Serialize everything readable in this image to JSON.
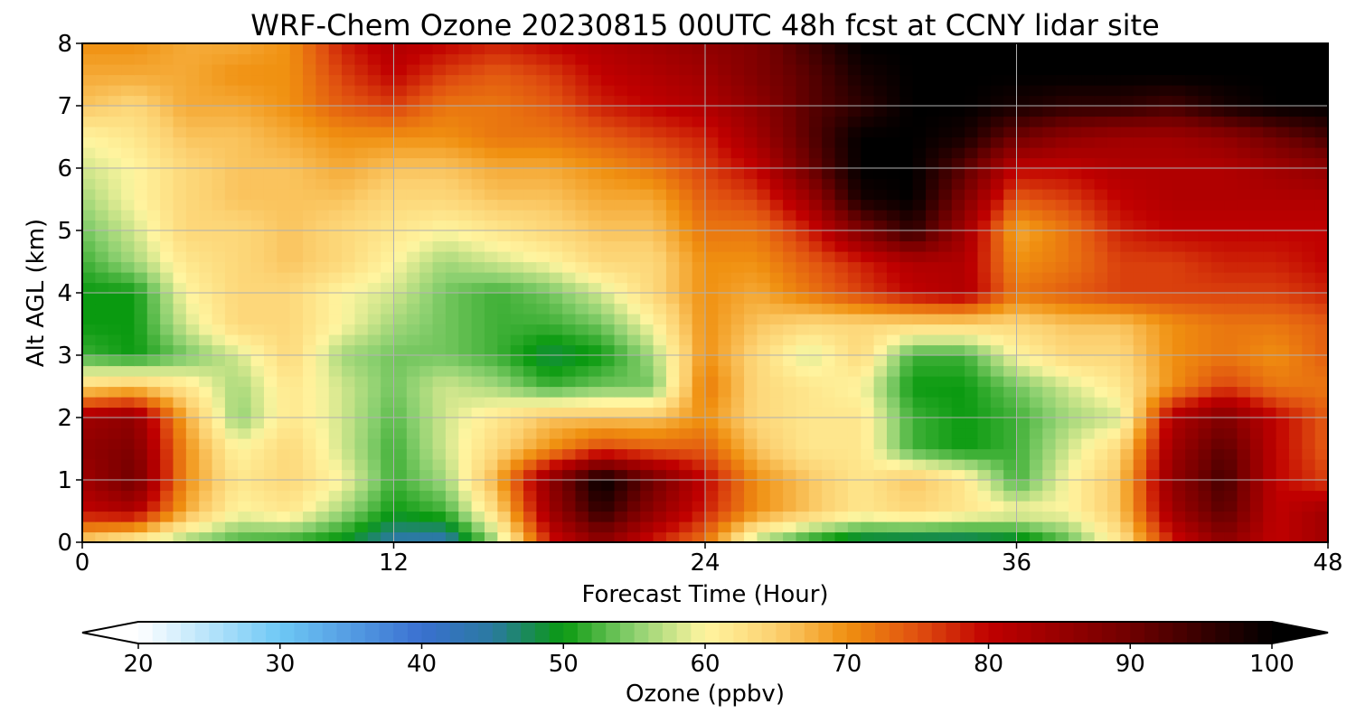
{
  "chart_data": {
    "type": "heatmap",
    "title": "WRF-Chem Ozone  20230815 00UTC 48h fcst at CCNY lidar site",
    "xlabel": "Forecast Time (Hour)",
    "ylabel": "Alt AGL (km)",
    "xlim": [
      0,
      48
    ],
    "ylim": [
      0,
      8
    ],
    "x_ticks": [
      0,
      12,
      24,
      36,
      48
    ],
    "y_ticks": [
      0,
      1,
      2,
      3,
      4,
      5,
      6,
      7,
      8
    ],
    "grid": true,
    "x": [
      0,
      2,
      4,
      6,
      8,
      10,
      12,
      14,
      16,
      18,
      20,
      22,
      24,
      26,
      28,
      30,
      32,
      34,
      36,
      38,
      40,
      42,
      44,
      46,
      48
    ],
    "y": [
      0,
      0.5,
      1,
      1.5,
      2,
      2.5,
      3,
      3.5,
      4,
      4.5,
      5,
      5.5,
      6,
      6.5,
      7,
      7.5,
      8
    ],
    "z": [
      [
        64,
        60,
        55,
        52,
        51,
        49,
        44,
        43,
        56,
        78,
        86,
        78,
        72,
        56,
        50,
        46,
        45,
        45,
        47,
        53,
        62,
        78,
        86,
        80,
        84
      ],
      [
        80,
        82,
        68,
        60,
        62,
        56,
        50,
        52,
        64,
        84,
        96,
        86,
        78,
        70,
        66,
        62,
        64,
        62,
        60,
        60,
        66,
        84,
        92,
        80,
        84
      ],
      [
        84,
        90,
        70,
        62,
        64,
        60,
        52,
        56,
        68,
        86,
        100,
        90,
        80,
        70,
        66,
        62,
        66,
        62,
        52,
        60,
        66,
        86,
        94,
        80,
        76
      ],
      [
        86,
        88,
        70,
        60,
        64,
        58,
        52,
        58,
        64,
        70,
        76,
        74,
        74,
        66,
        62,
        62,
        52,
        50,
        52,
        58,
        64,
        84,
        92,
        80,
        74
      ],
      [
        84,
        86,
        68,
        55,
        62,
        58,
        53,
        58,
        62,
        66,
        66,
        66,
        70,
        64,
        62,
        62,
        52,
        50,
        52,
        56,
        58,
        82,
        88,
        80,
        74
      ],
      [
        64,
        66,
        62,
        56,
        62,
        58,
        54,
        58,
        56,
        52,
        54,
        54,
        72,
        64,
        62,
        60,
        50,
        50,
        54,
        58,
        62,
        70,
        76,
        72,
        72
      ],
      [
        52,
        50,
        54,
        58,
        64,
        56,
        54,
        54,
        52,
        48,
        50,
        56,
        70,
        64,
        58,
        64,
        52,
        52,
        60,
        64,
        64,
        70,
        72,
        70,
        74
      ],
      [
        50,
        50,
        58,
        64,
        64,
        60,
        56,
        54,
        52,
        52,
        54,
        60,
        70,
        66,
        64,
        64,
        64,
        64,
        64,
        66,
        66,
        70,
        72,
        72,
        74
      ],
      [
        50,
        50,
        60,
        64,
        64,
        60,
        58,
        54,
        52,
        54,
        58,
        64,
        70,
        68,
        72,
        76,
        80,
        82,
        72,
        74,
        76,
        76,
        76,
        76,
        78
      ],
      [
        52,
        56,
        62,
        64,
        66,
        64,
        60,
        56,
        58,
        60,
        64,
        64,
        70,
        70,
        74,
        78,
        82,
        82,
        70,
        72,
        76,
        76,
        78,
        78,
        80
      ],
      [
        54,
        58,
        64,
        64,
        66,
        64,
        62,
        60,
        62,
        64,
        66,
        66,
        72,
        72,
        78,
        88,
        96,
        84,
        68,
        72,
        78,
        80,
        80,
        80,
        80
      ],
      [
        56,
        60,
        64,
        66,
        66,
        66,
        64,
        64,
        66,
        66,
        68,
        68,
        74,
        76,
        84,
        98,
        100,
        88,
        74,
        76,
        80,
        82,
        82,
        82,
        82
      ],
      [
        58,
        60,
        64,
        66,
        66,
        68,
        66,
        66,
        68,
        68,
        70,
        72,
        76,
        80,
        90,
        100,
        100,
        92,
        80,
        80,
        82,
        82,
        82,
        84,
        86
      ],
      [
        60,
        62,
        66,
        66,
        68,
        70,
        70,
        70,
        72,
        72,
        74,
        76,
        78,
        84,
        92,
        100,
        100,
        98,
        90,
        86,
        84,
        84,
        86,
        90,
        94
      ],
      [
        66,
        64,
        68,
        68,
        70,
        74,
        76,
        72,
        72,
        74,
        78,
        80,
        82,
        86,
        92,
        96,
        100,
        100,
        98,
        96,
        96,
        94,
        98,
        100,
        100
      ],
      [
        68,
        68,
        68,
        70,
        70,
        76,
        80,
        76,
        74,
        76,
        80,
        82,
        84,
        88,
        92,
        98,
        100,
        100,
        100,
        100,
        100,
        100,
        100,
        100,
        100
      ],
      [
        70,
        70,
        68,
        68,
        70,
        78,
        82,
        80,
        78,
        80,
        82,
        84,
        86,
        88,
        94,
        100,
        100,
        100,
        100,
        100,
        100,
        100,
        100,
        100,
        100
      ]
    ],
    "colorbar": {
      "label": "Ozone  (ppbv)",
      "min": 20,
      "max": 100,
      "ticks": [
        20,
        30,
        40,
        50,
        60,
        70,
        80,
        90,
        100
      ],
      "extend": "both",
      "stops": [
        {
          "v": 20,
          "c": "#ffffff"
        },
        {
          "v": 30,
          "c": "#6ec8f5"
        },
        {
          "v": 40,
          "c": "#3a70d0"
        },
        {
          "v": 45,
          "c": "#2a7aa0"
        },
        {
          "v": 50,
          "c": "#0a9a10"
        },
        {
          "v": 55,
          "c": "#8cd070"
        },
        {
          "v": 60,
          "c": "#fff5a0"
        },
        {
          "v": 65,
          "c": "#fcd070"
        },
        {
          "v": 70,
          "c": "#f09010"
        },
        {
          "v": 75,
          "c": "#e05010"
        },
        {
          "v": 80,
          "c": "#c00000"
        },
        {
          "v": 90,
          "c": "#700000"
        },
        {
          "v": 100,
          "c": "#000000"
        }
      ]
    }
  }
}
